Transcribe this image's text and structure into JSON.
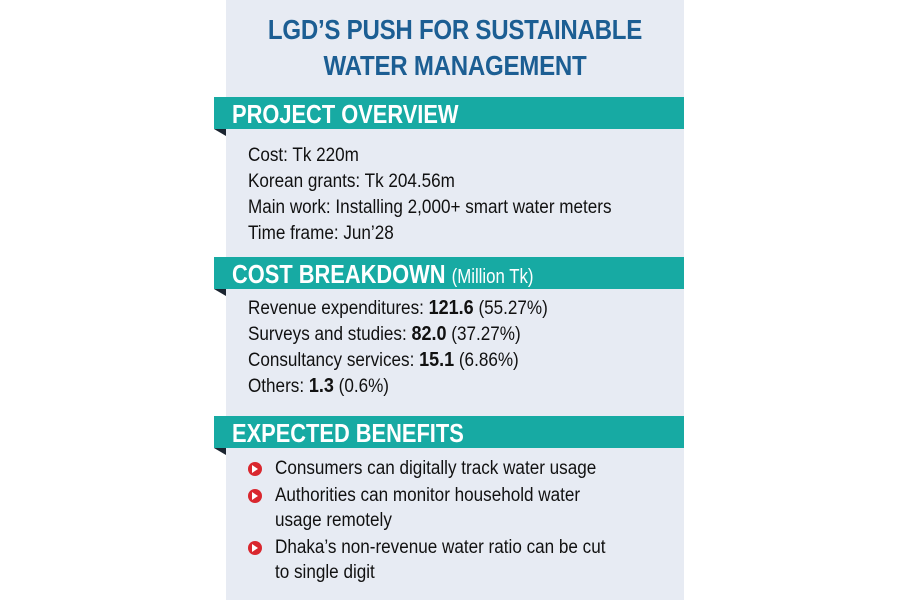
{
  "title": {
    "line1": "LGD’S PUSH FOR SUSTAINABLE",
    "line2": "WATER MANAGEMENT"
  },
  "overview": {
    "heading": "PROJECT OVERVIEW",
    "items": [
      {
        "label": "Cost:",
        "value": "Tk 220m"
      },
      {
        "label": "Korean grants:",
        "value": "Tk 204.56m"
      },
      {
        "label": "Main work:",
        "value": "Installing 2,000+ smart water meters"
      },
      {
        "label": "Time frame:",
        "value": "Jun’28"
      }
    ]
  },
  "breakdown": {
    "heading": "COST BREAKDOWN",
    "unit": "(Million Tk)",
    "items": [
      {
        "label": "Revenue expenditures:",
        "amount": "121.6",
        "share": "(55.27%)"
      },
      {
        "label": "Surveys and studies:",
        "amount": "82.0",
        "share": "(37.27%)"
      },
      {
        "label": "Consultancy services:",
        "amount": "15.1",
        "share": "(6.86%)"
      },
      {
        "label": "Others:",
        "amount": "1.3",
        "share": "(0.6%)"
      }
    ]
  },
  "benefits": {
    "heading": "EXPECTED BENEFITS",
    "items": [
      {
        "line1": "Consumers can digitally track water usage",
        "line2": ""
      },
      {
        "line1": "Authorities can monitor household water",
        "line2": "usage remotely"
      },
      {
        "line1": "Dhaka’s non-revenue water ratio can be cut",
        "line2": "to single digit"
      }
    ]
  },
  "colors": {
    "panel": "#e7ebf3",
    "title": "#1c5e93",
    "banner": "#17aaa3",
    "bullet": "#d9272e"
  }
}
